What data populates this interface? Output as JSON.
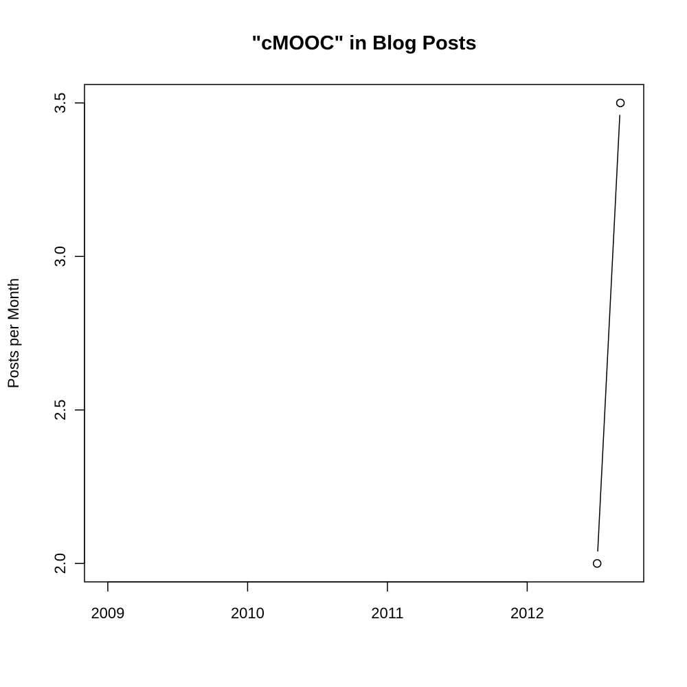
{
  "chart_data": {
    "type": "line",
    "title": "\"cMOOC\" in Blog Posts",
    "xlabel": "",
    "ylabel": "Posts per Month",
    "x": [
      "2012-07",
      "2012-09"
    ],
    "series": [
      {
        "values": [
          2.0,
          3.5
        ]
      }
    ],
    "xlim": [
      "2008-11",
      "2012-11"
    ],
    "ylim": [
      1.94,
      3.56
    ],
    "x_ticks": [
      "2009",
      "2010",
      "2011",
      "2012"
    ],
    "y_ticks": [
      "2.0",
      "2.5",
      "3.0",
      "3.5"
    ],
    "markers": "open-circle",
    "grid": false,
    "legend": "none",
    "colors": {
      "line": "#000000",
      "background": "#ffffff"
    }
  }
}
